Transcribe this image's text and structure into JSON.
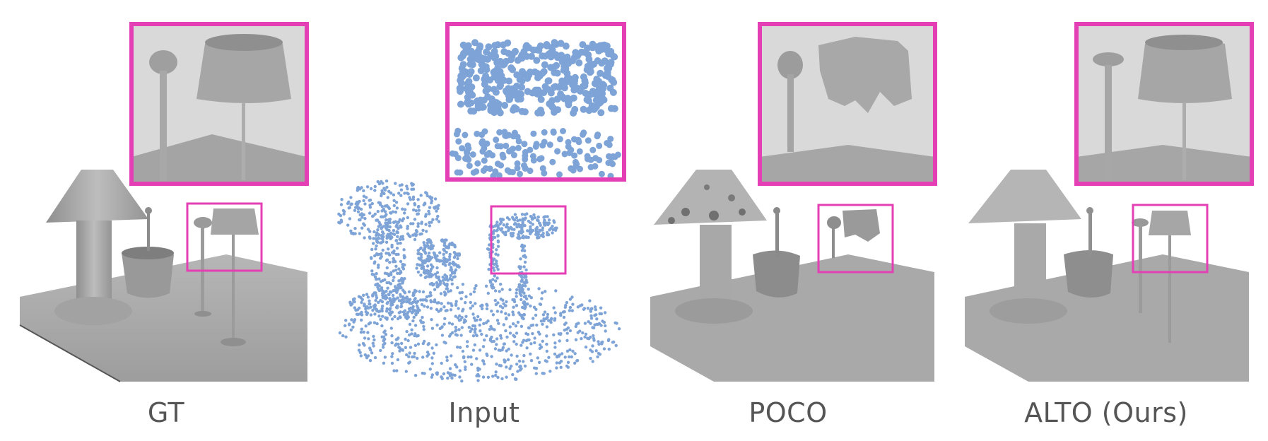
{
  "figure": {
    "highlight_color": "#e43fb5",
    "surface_color": "#a9a9a9",
    "point_color": "#7ea3d6",
    "panels": [
      {
        "id": "gt",
        "caption": "GT"
      },
      {
        "id": "input",
        "caption": "Input"
      },
      {
        "id": "poco",
        "caption": "POCO"
      },
      {
        "id": "alto",
        "caption": "ALTO (Ours)"
      }
    ]
  }
}
